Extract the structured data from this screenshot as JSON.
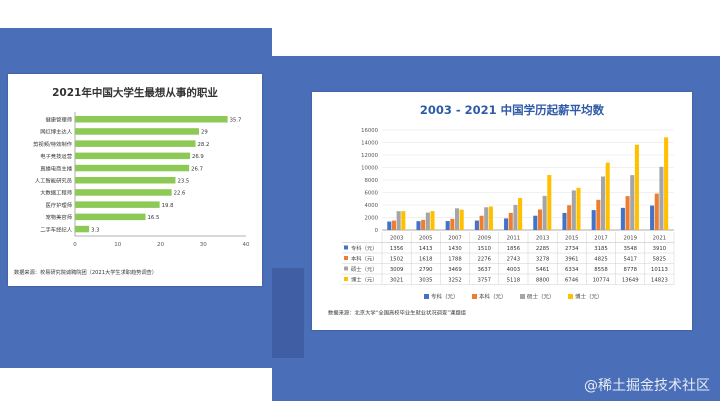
{
  "chart_data": [
    {
      "type": "bar",
      "orientation": "horizontal",
      "title": "2021年中国大学生最想从事的职业",
      "categories": [
        "健康管理师",
        "网红博主达人",
        "剪视频/特效制作",
        "电子竞技运营",
        "直播电商主播",
        "人工智能研究员",
        "大数据工程师",
        "医疗护理师",
        "宠物美容师",
        "二手车经纪人"
      ],
      "values": [
        35.7,
        29,
        28.2,
        26.9,
        26.7,
        23.5,
        22.6,
        19.8,
        16.5,
        3.3
      ],
      "xlim": [
        0,
        40
      ],
      "xticks": [
        "0",
        "10",
        "20",
        "30",
        "40"
      ],
      "bar_color": "#8dc955",
      "source": "数据来源：校易研究院诚聘院团（2021大学生求职趋势调查）"
    },
    {
      "type": "bar",
      "title": "2003 - 2021 中国学历起薪平均数",
      "categories": [
        "2003",
        "2005",
        "2007",
        "2009",
        "2011",
        "2013",
        "2015",
        "2017",
        "2019",
        "2021"
      ],
      "series": [
        {
          "name": "专科（元）",
          "color": "#4472c4",
          "values": [
            1356,
            1413,
            1430,
            1510,
            1856,
            2285,
            2734,
            3185,
            3548,
            3910
          ]
        },
        {
          "name": "本科（元）",
          "color": "#ed7d31",
          "values": [
            1502,
            1618,
            1788,
            2276,
            2743,
            3278,
            3961,
            4825,
            5417,
            5825
          ]
        },
        {
          "name": "硕士（元）",
          "color": "#a5a5a5",
          "values": [
            3009,
            2790,
            3469,
            3637,
            4003,
            5461,
            6334,
            8558,
            8778,
            10113
          ]
        },
        {
          "name": "博士（元）",
          "color": "#ffc000",
          "values": [
            3021,
            3035,
            3252,
            3757,
            5118,
            8800,
            6746,
            10774,
            13649,
            14823
          ]
        }
      ],
      "ylim": [
        0,
        16000
      ],
      "yticks": [
        "0",
        "2000",
        "4000",
        "6000",
        "8000",
        "10000",
        "12000",
        "14000",
        "16000"
      ],
      "source": "数据来源：北京大学“全国高校毕业生就业状况调查”课题组"
    }
  ],
  "watermark": "@稀土掘金技术社区"
}
